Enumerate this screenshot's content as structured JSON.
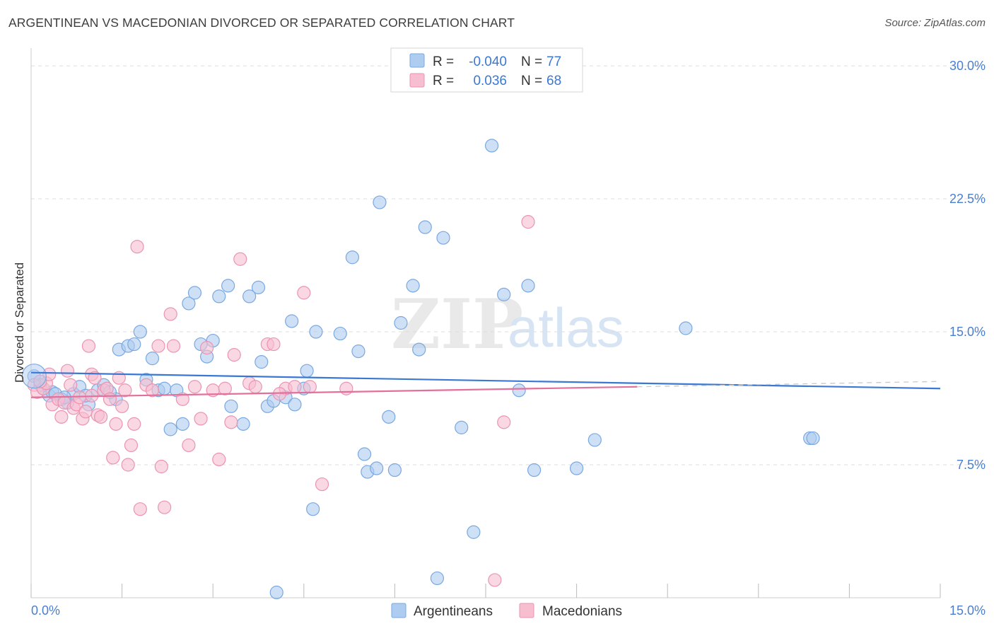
{
  "header": {
    "title": "ARGENTINEAN VS MACEDONIAN DIVORCED OR SEPARATED CORRELATION CHART",
    "source": "Source: ZipAtlas.com"
  },
  "watermark": {
    "zip": "ZIP",
    "atlas": "atlas"
  },
  "legend_top": [
    {
      "r_label": "R =",
      "r_value": "-0.040",
      "n_label": "N =",
      "n_value": "77"
    },
    {
      "r_label": "R =",
      "r_value": "0.036",
      "n_label": "N =",
      "n_value": "68"
    }
  ],
  "legend_bottom": [
    "Argentineans",
    "Macedonians"
  ],
  "colors": {
    "blue_fill": "#aecbf0",
    "blue_stroke": "#7aa8e0",
    "blue_line": "#3a78d4",
    "pink_fill": "#f7bed0",
    "pink_stroke": "#eb94b2",
    "pink_line": "#e3709a",
    "text_dark": "#333333",
    "value_blue": "#3a78d4",
    "grid": "#dddddd"
  },
  "chart_data": {
    "type": "scatter",
    "title": "ARGENTINEAN VS MACEDONIAN DIVORCED OR SEPARATED CORRELATION CHART",
    "xlabel": "",
    "ylabel": "Divorced or Separated",
    "xlim": [
      0,
      15
    ],
    "ylim": [
      0,
      31
    ],
    "x_tick_labels": [
      "0.0%",
      "15.0%"
    ],
    "y_ticks": [
      7.5,
      15.0,
      22.5,
      30.0
    ],
    "y_tick_labels": [
      "7.5%",
      "15.0%",
      "22.5%",
      "30.0%"
    ],
    "grid": true,
    "legend": "top-center",
    "series": [
      {
        "name": "Argentineans",
        "r": -0.04,
        "n": 77,
        "trend": {
          "x": [
            0,
            15
          ],
          "y": [
            12.7,
            11.8
          ]
        },
        "points": [
          [
            0.05,
            12.5
          ],
          [
            0.2,
            11.8
          ],
          [
            0.3,
            11.4
          ],
          [
            0.35,
            11.6
          ],
          [
            0.5,
            11.2
          ],
          [
            0.6,
            11.0
          ],
          [
            0.7,
            11.5
          ],
          [
            0.8,
            11.9
          ],
          [
            0.95,
            10.9
          ],
          [
            1.1,
            11.7
          ],
          [
            1.2,
            12.0
          ],
          [
            1.4,
            11.2
          ],
          [
            1.45,
            14.0
          ],
          [
            1.6,
            14.2
          ],
          [
            1.7,
            14.3
          ],
          [
            1.8,
            15.0
          ],
          [
            1.9,
            12.3
          ],
          [
            2.0,
            13.5
          ],
          [
            2.1,
            11.7
          ],
          [
            2.2,
            11.8
          ],
          [
            2.3,
            9.5
          ],
          [
            2.4,
            11.7
          ],
          [
            2.5,
            9.8
          ],
          [
            2.6,
            16.6
          ],
          [
            2.7,
            17.2
          ],
          [
            2.8,
            14.3
          ],
          [
            2.9,
            13.6
          ],
          [
            3.0,
            14.5
          ],
          [
            3.1,
            17.0
          ],
          [
            3.25,
            17.6
          ],
          [
            3.3,
            10.8
          ],
          [
            3.5,
            9.8
          ],
          [
            3.6,
            17.0
          ],
          [
            3.75,
            17.5
          ],
          [
            3.8,
            13.3
          ],
          [
            3.9,
            10.8
          ],
          [
            4.0,
            11.1
          ],
          [
            4.05,
            0.3
          ],
          [
            4.2,
            11.3
          ],
          [
            4.3,
            15.6
          ],
          [
            4.35,
            10.9
          ],
          [
            4.5,
            11.8
          ],
          [
            4.55,
            12.8
          ],
          [
            4.65,
            5.0
          ],
          [
            4.7,
            15.0
          ],
          [
            5.1,
            14.9
          ],
          [
            5.3,
            19.2
          ],
          [
            5.4,
            13.9
          ],
          [
            5.5,
            8.1
          ],
          [
            5.55,
            7.1
          ],
          [
            5.7,
            7.3
          ],
          [
            5.75,
            22.3
          ],
          [
            5.9,
            10.2
          ],
          [
            6.0,
            7.2
          ],
          [
            6.1,
            15.5
          ],
          [
            6.3,
            17.6
          ],
          [
            6.4,
            14.0
          ],
          [
            6.5,
            20.9
          ],
          [
            6.7,
            1.1
          ],
          [
            6.8,
            20.3
          ],
          [
            7.1,
            9.6
          ],
          [
            7.3,
            3.7
          ],
          [
            7.6,
            25.5
          ],
          [
            7.8,
            17.1
          ],
          [
            8.05,
            11.7
          ],
          [
            8.2,
            17.6
          ],
          [
            8.3,
            7.2
          ],
          [
            9.0,
            7.3
          ],
          [
            9.3,
            8.9
          ],
          [
            10.8,
            15.2
          ],
          [
            12.85,
            9.0
          ],
          [
            12.9,
            9.0
          ],
          [
            0.15,
            12.0
          ],
          [
            0.4,
            11.5
          ],
          [
            0.55,
            11.3
          ],
          [
            0.9,
            11.4
          ],
          [
            1.3,
            11.6
          ]
        ]
      },
      {
        "name": "Macedonians",
        "r": 0.036,
        "n": 68,
        "trend": {
          "x": [
            0,
            10.0
          ],
          "y": [
            11.3,
            11.9
          ]
        },
        "points": [
          [
            0.05,
            12.0
          ],
          [
            0.1,
            11.6
          ],
          [
            0.2,
            11.8
          ],
          [
            0.25,
            12.1
          ],
          [
            0.3,
            12.6
          ],
          [
            0.35,
            10.9
          ],
          [
            0.45,
            11.2
          ],
          [
            0.5,
            10.2
          ],
          [
            0.55,
            11.0
          ],
          [
            0.6,
            12.8
          ],
          [
            0.65,
            12.0
          ],
          [
            0.7,
            10.7
          ],
          [
            0.75,
            10.9
          ],
          [
            0.8,
            11.3
          ],
          [
            0.85,
            10.1
          ],
          [
            0.9,
            10.5
          ],
          [
            0.95,
            14.2
          ],
          [
            1.0,
            12.6
          ],
          [
            1.05,
            12.4
          ],
          [
            1.1,
            10.3
          ],
          [
            1.15,
            10.2
          ],
          [
            1.2,
            11.7
          ],
          [
            1.25,
            11.8
          ],
          [
            1.3,
            11.2
          ],
          [
            1.35,
            7.9
          ],
          [
            1.4,
            9.8
          ],
          [
            1.45,
            12.4
          ],
          [
            1.5,
            10.8
          ],
          [
            1.55,
            11.7
          ],
          [
            1.6,
            7.5
          ],
          [
            1.65,
            8.6
          ],
          [
            1.7,
            9.8
          ],
          [
            1.75,
            19.8
          ],
          [
            1.8,
            5.0
          ],
          [
            1.9,
            12.0
          ],
          [
            2.0,
            11.7
          ],
          [
            2.1,
            14.2
          ],
          [
            2.15,
            7.4
          ],
          [
            2.2,
            5.1
          ],
          [
            2.3,
            16.0
          ],
          [
            2.35,
            14.2
          ],
          [
            2.6,
            8.6
          ],
          [
            2.7,
            11.9
          ],
          [
            2.8,
            10.1
          ],
          [
            2.9,
            14.1
          ],
          [
            3.0,
            11.7
          ],
          [
            3.1,
            7.8
          ],
          [
            3.2,
            11.8
          ],
          [
            3.35,
            13.7
          ],
          [
            3.45,
            19.1
          ],
          [
            3.6,
            12.1
          ],
          [
            3.7,
            11.9
          ],
          [
            3.9,
            14.3
          ],
          [
            4.0,
            14.3
          ],
          [
            4.2,
            11.8
          ],
          [
            4.35,
            11.9
          ],
          [
            4.5,
            17.2
          ],
          [
            4.6,
            11.9
          ],
          [
            4.8,
            6.4
          ],
          [
            5.2,
            11.8
          ],
          [
            7.65,
            1.0
          ],
          [
            7.8,
            9.9
          ],
          [
            8.2,
            21.2
          ],
          [
            0.15,
            12.2
          ],
          [
            1.0,
            11.4
          ],
          [
            2.5,
            11.2
          ],
          [
            3.3,
            9.9
          ],
          [
            4.1,
            11.5
          ]
        ]
      }
    ]
  }
}
